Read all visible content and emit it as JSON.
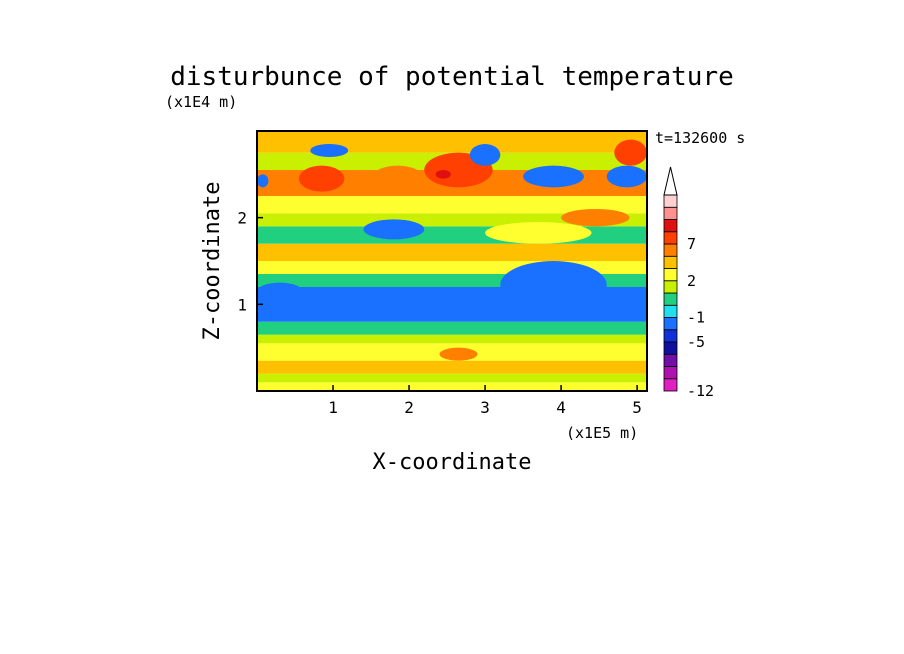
{
  "chart_data": {
    "type": "heatmap",
    "title": "disturbunce of potential temperature",
    "xlabel": "X-coordinate",
    "ylabel": "Z-coordinate",
    "x_unit": "(x1E5 m)",
    "y_unit": "(x1E4 m)",
    "time_label": "t=132600 s",
    "xlim": [
      0,
      5.13
    ],
    "ylim": [
      0,
      3.0
    ],
    "x_ticks": [
      "1",
      "2",
      "3",
      "4",
      "5"
    ],
    "y_ticks": [
      "1",
      "2"
    ],
    "colorbar": {
      "labels": [
        "7",
        "2",
        "-1",
        "-5",
        "-12"
      ],
      "levels": [
        -12,
        -11,
        -9,
        -7,
        -5,
        -3,
        -1,
        0,
        1,
        2,
        3,
        5,
        7,
        9,
        11
      ],
      "colors": [
        "#e020c0",
        "#b010b0",
        "#7010a8",
        "#1010a0",
        "#1030d8",
        "#1a70ff",
        "#20e0f0",
        "#20d080",
        "#c8f000",
        "#ffff30",
        "#ffc000",
        "#ff8000",
        "#ff4000",
        "#e01010",
        "#ff9090",
        "#ffd0d0"
      ],
      "extend": "max"
    },
    "bands": [
      {
        "z": [
          0.0,
          0.1
        ],
        "value": 1.5
      },
      {
        "z": [
          0.1,
          0.2
        ],
        "value": 0.5
      },
      {
        "z": [
          0.2,
          0.35
        ],
        "value": 2.5
      },
      {
        "z": [
          0.35,
          0.55
        ],
        "value": 1.5
      },
      {
        "z": [
          0.55,
          0.65
        ],
        "value": 0.5
      },
      {
        "z": [
          0.65,
          0.8
        ],
        "value": -0.5
      },
      {
        "z": [
          0.8,
          1.2
        ],
        "value": -3.5
      },
      {
        "z": [
          1.2,
          1.35
        ],
        "value": -0.5
      },
      {
        "z": [
          1.35,
          1.5
        ],
        "value": 1.5
      },
      {
        "z": [
          1.5,
          1.7
        ],
        "value": 2.5
      },
      {
        "z": [
          1.7,
          1.9
        ],
        "value": -0.5
      },
      {
        "z": [
          1.9,
          2.05
        ],
        "value": 0.5
      },
      {
        "z": [
          2.05,
          2.25
        ],
        "value": 1.5
      },
      {
        "z": [
          2.25,
          2.55
        ],
        "value": 4
      },
      {
        "z": [
          2.55,
          2.75
        ],
        "value": 0.5
      },
      {
        "z": [
          2.75,
          3.0
        ],
        "value": 2.5
      }
    ],
    "patches": [
      {
        "x": [
          0.55,
          1.15
        ],
        "z": [
          2.3,
          2.6
        ],
        "value": 6
      },
      {
        "x": [
          1.5,
          2.2
        ],
        "z": [
          2.3,
          2.6
        ],
        "value": 4
      },
      {
        "x": [
          2.2,
          3.1
        ],
        "z": [
          2.35,
          2.75
        ],
        "value": 6
      },
      {
        "x": [
          2.35,
          2.55
        ],
        "z": [
          2.45,
          2.55
        ],
        "value": 8
      },
      {
        "x": [
          1.4,
          2.2
        ],
        "z": [
          1.75,
          1.98
        ],
        "value": -4
      },
      {
        "x": [
          3.0,
          4.4
        ],
        "z": [
          1.7,
          1.95
        ],
        "value": 1.5
      },
      {
        "x": [
          4.0,
          4.9
        ],
        "z": [
          1.9,
          2.1
        ],
        "value": 4
      },
      {
        "x": [
          3.5,
          4.3
        ],
        "z": [
          2.35,
          2.6
        ],
        "value": -4
      },
      {
        "x": [
          4.6,
          5.13
        ],
        "z": [
          2.35,
          2.6
        ],
        "value": -4
      },
      {
        "x": [
          0.7,
          1.2
        ],
        "z": [
          2.7,
          2.85
        ],
        "value": -4
      },
      {
        "x": [
          2.8,
          3.2
        ],
        "z": [
          2.6,
          2.85
        ],
        "value": -4
      },
      {
        "x": [
          3.2,
          4.6
        ],
        "z": [
          0.95,
          1.5
        ],
        "value": -4
      },
      {
        "x": [
          0.0,
          0.6
        ],
        "z": [
          1.05,
          1.25
        ],
        "value": -5
      },
      {
        "x": [
          0.0,
          0.15
        ],
        "z": [
          2.35,
          2.5
        ],
        "value": -4
      },
      {
        "x": [
          4.7,
          5.13
        ],
        "z": [
          2.6,
          2.9
        ],
        "value": 6
      },
      {
        "x": [
          2.4,
          2.9
        ],
        "z": [
          0.35,
          0.5
        ],
        "value": 4
      }
    ]
  }
}
